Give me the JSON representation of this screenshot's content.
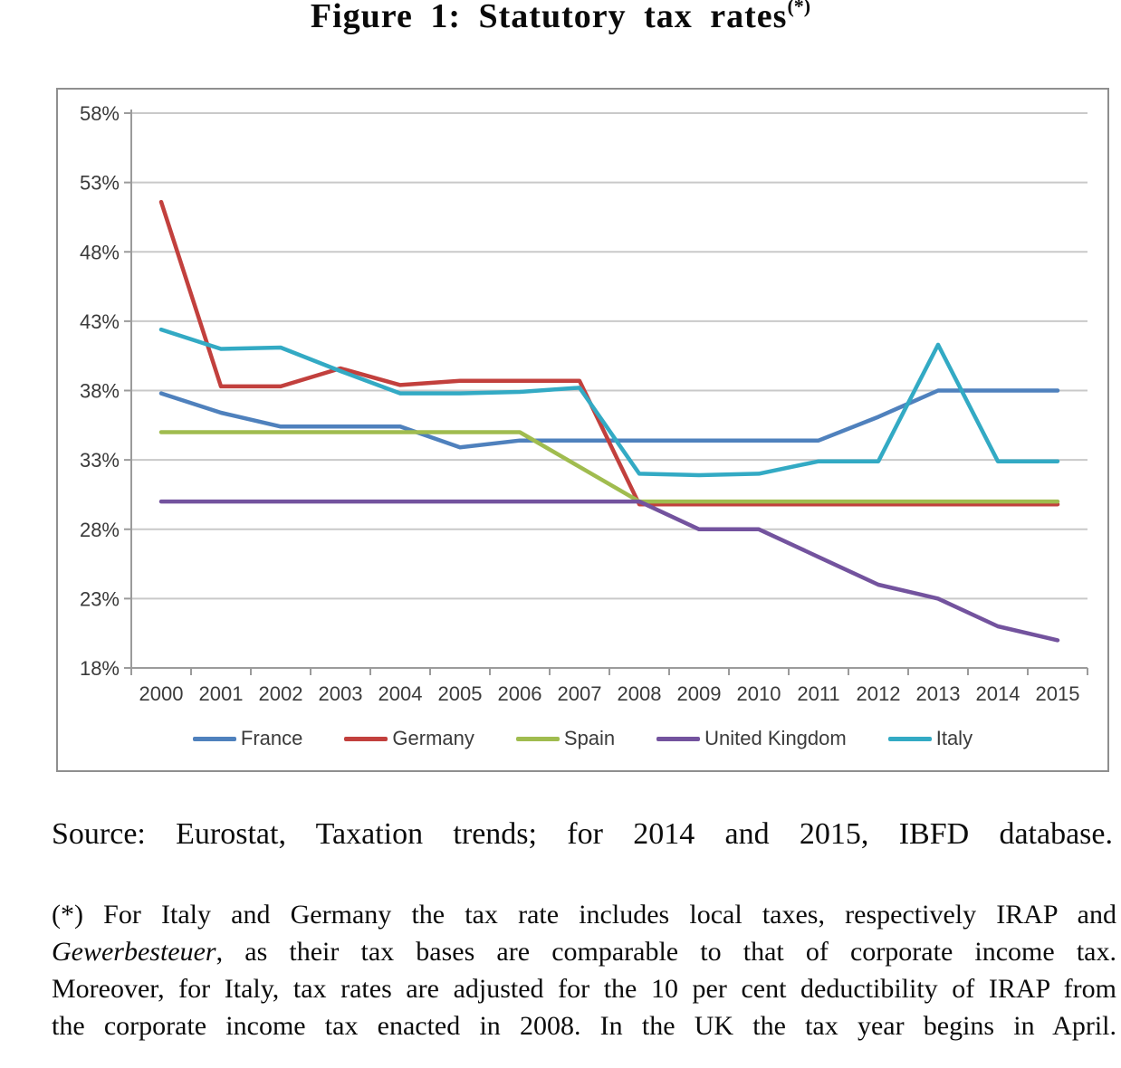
{
  "figure": {
    "title": "Figure 1: Statutory tax rates",
    "title_superscript": "(*)"
  },
  "source_line": "Source: Eurostat, Taxation trends; for 2014 and 2015, IBFD database.",
  "footnote": {
    "line1": "(*) For Italy and Germany the tax rate includes local taxes, respectively IRAP and",
    "line2_italic": "Gewerbesteuer",
    "line2_rest": ", as their tax bases are comparable to that of corporate income tax.",
    "line3": "Moreover, for Italy, tax rates are adjusted for the 10 per cent deductibility of IRAP from",
    "line4": "the corporate income tax enacted in 2008. In the UK the tax year begins in April."
  },
  "chart_data": {
    "type": "line",
    "title": "Statutory tax rates (%), 2000-2015",
    "x": [
      "2000",
      "2001",
      "2002",
      "2003",
      "2004",
      "2005",
      "2006",
      "2007",
      "2008",
      "2009",
      "2010",
      "2011",
      "2012",
      "2013",
      "2014",
      "2015"
    ],
    "series": [
      {
        "name": "France",
        "color": "#4f81bd",
        "values": [
          37.8,
          36.4,
          35.4,
          35.4,
          35.4,
          33.9,
          34.4,
          34.4,
          34.4,
          34.4,
          34.4,
          34.4,
          36.1,
          38.0,
          38.0,
          38.0
        ]
      },
      {
        "name": "Germany",
        "color": "#c2403d",
        "values": [
          51.6,
          38.3,
          38.3,
          39.6,
          38.4,
          38.7,
          38.7,
          38.7,
          29.8,
          29.8,
          29.8,
          29.8,
          29.8,
          29.8,
          29.8,
          29.8
        ]
      },
      {
        "name": "Spain",
        "color": "#a0bc4f",
        "values": [
          35.0,
          35.0,
          35.0,
          35.0,
          35.0,
          35.0,
          35.0,
          32.5,
          30.0,
          30.0,
          30.0,
          30.0,
          30.0,
          30.0,
          30.0,
          30.0
        ]
      },
      {
        "name": "United Kingdom",
        "color": "#73539e",
        "values": [
          30.0,
          30.0,
          30.0,
          30.0,
          30.0,
          30.0,
          30.0,
          30.0,
          30.0,
          28.0,
          28.0,
          26.0,
          24.0,
          23.0,
          21.0,
          20.0
        ]
      },
      {
        "name": "Italy",
        "color": "#33aac4",
        "values": [
          42.4,
          41.0,
          41.1,
          39.4,
          37.8,
          37.8,
          37.9,
          38.2,
          32.0,
          31.9,
          32.0,
          32.9,
          32.9,
          41.3,
          32.9,
          32.9
        ]
      }
    ],
    "ylim": [
      18,
      58
    ],
    "ytick_step": 5,
    "ytick_labels": [
      "58%",
      "53%",
      "48%",
      "43%",
      "38%",
      "33%",
      "28%",
      "23%",
      "18%"
    ],
    "xlabel": "",
    "ylabel": "",
    "grid": true,
    "legend_position": "bottom",
    "grid_color": "#c9c9c9",
    "axis_color": "#9b9b9b",
    "tick_label_color": "#3a3a3a"
  }
}
